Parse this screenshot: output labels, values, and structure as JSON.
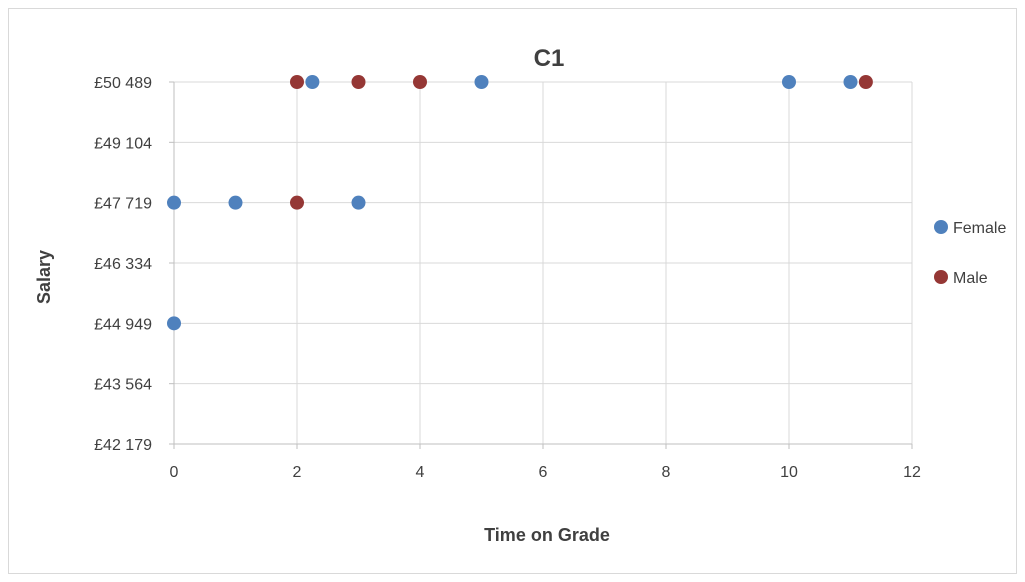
{
  "chart_data": {
    "type": "scatter",
    "title": "C1",
    "xlabel": "Time on Grade",
    "ylabel": "Salary",
    "xlim": [
      0,
      12
    ],
    "ylim": [
      42179,
      50489
    ],
    "x_ticks": [
      0,
      2,
      4,
      6,
      8,
      10,
      12
    ],
    "x_tick_labels": [
      "0",
      "2",
      "4",
      "6",
      "8",
      "10",
      "12"
    ],
    "y_ticks": [
      42179,
      43564,
      44949,
      46334,
      47719,
      49104,
      50489
    ],
    "y_tick_labels": [
      "£42 179",
      "£43 564",
      "£44 949",
      "£46 334",
      "£47 719",
      "£49 104",
      "£50 489"
    ],
    "grid": true,
    "legend_position": "right",
    "series": [
      {
        "name": "Female",
        "color": "#4f81bd",
        "points": [
          {
            "x": 0,
            "y": 44949
          },
          {
            "x": 0,
            "y": 47719
          },
          {
            "x": 1,
            "y": 47719
          },
          {
            "x": 3,
            "y": 47719
          },
          {
            "x": 2.25,
            "y": 50489
          },
          {
            "x": 5,
            "y": 50489
          },
          {
            "x": 10,
            "y": 50489
          },
          {
            "x": 11,
            "y": 50489
          }
        ]
      },
      {
        "name": "Male",
        "color": "#953735",
        "points": [
          {
            "x": 2,
            "y": 47719
          },
          {
            "x": 2,
            "y": 50489
          },
          {
            "x": 3,
            "y": 50489
          },
          {
            "x": 4,
            "y": 50489
          },
          {
            "x": 11.25,
            "y": 50489
          }
        ]
      }
    ]
  }
}
